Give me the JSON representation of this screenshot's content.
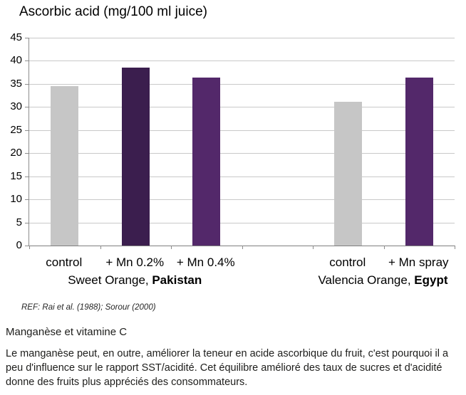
{
  "chart": {
    "title": "Ascorbic acid (mg/100 ml juice)",
    "reference": "REF: Rai et al. (1988); Sorour (2000)"
  },
  "chart_data": {
    "type": "bar",
    "title": "Ascorbic acid (mg/100 ml juice)",
    "categories": [
      "control",
      "+ Mn 0.2%",
      "+ Mn 0.4%",
      "control",
      "+ Mn spray"
    ],
    "values": [
      34.5,
      38.5,
      36.3,
      31.2,
      36.3
    ],
    "bar_colors": [
      "#c6c6c6",
      "#3b1e4e",
      "#53286a",
      "#c6c6c6",
      "#53286a"
    ],
    "slot_indices": [
      0,
      1,
      2,
      4,
      5
    ],
    "num_slots": 6,
    "groups": [
      {
        "label_prefix": "Sweet Orange, ",
        "label_bold": "Pakistan",
        "slot_start": 0,
        "slot_end": 2
      },
      {
        "label_prefix": "Valencia Orange, ",
        "label_bold": "Egypt",
        "slot_start": 4,
        "slot_end": 5
      }
    ],
    "xlabel": "",
    "ylabel": "",
    "ylim": [
      0,
      45
    ],
    "ytick_step": 5,
    "grid": true,
    "legend": false,
    "colors": {
      "gridline": "#c9c9c9",
      "axis": "#8c8c8c",
      "control_bar": "#c6c6c6",
      "mn02_bar": "#3b1e4e",
      "mn04_bar": "#53286a"
    }
  },
  "section": {
    "heading": "Manganèse et vitamine C",
    "paragraph": "Le manganèse peut, en outre, améliorer la teneur en acide ascorbique du fruit, c'est pourquoi il a peu d'influence sur le rapport SST/acidité. Cet équilibre amélioré des taux de sucres et d'acidité donne des fruits plus appréciés des consommateurs."
  }
}
